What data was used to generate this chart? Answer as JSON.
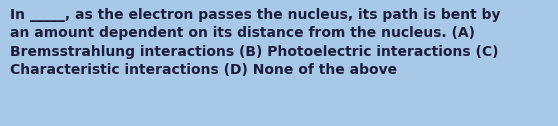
{
  "text": "In _____, as the electron passes the nucleus, its path is bent by\nan amount dependent on its distance from the nucleus. (A)\nBremsstrahlung interactions (B) Photoelectric interactions (C)\nCharacteristic interactions (D) None of the above",
  "background_color": "#a8c8e8",
  "text_color": "#1c1c3c",
  "font_size": 10.0,
  "fig_width": 5.58,
  "fig_height": 1.26,
  "dpi": 100
}
